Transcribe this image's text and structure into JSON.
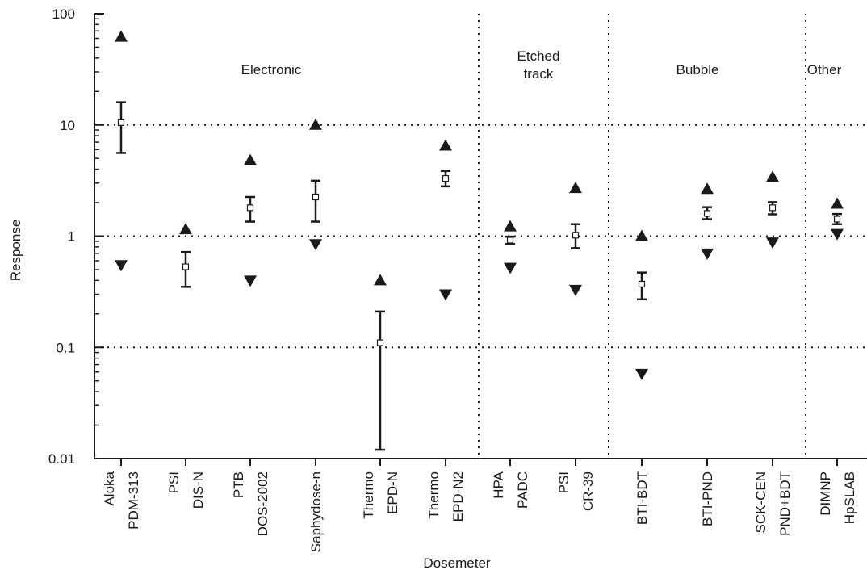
{
  "chart_data": {
    "type": "scatter",
    "xlabel": "Dosemeter",
    "ylabel": "Response",
    "yscale": "log",
    "ylim": [
      0.01,
      100
    ],
    "yticks": [
      {
        "value": 100,
        "label": "100"
      },
      {
        "value": 10,
        "label": "10"
      },
      {
        "value": 1,
        "label": "1"
      },
      {
        "value": 0.1,
        "label": "0.1"
      },
      {
        "value": 0.01,
        "label": "0.01"
      }
    ],
    "horizontal_gridlines": [
      10,
      1,
      0.1
    ],
    "colors": {
      "ink": "#1a1a1a",
      "mean_marker_fill": "#ffffff"
    },
    "groups": [
      {
        "lines": [
          "Electronic"
        ],
        "start": 0,
        "end": 5
      },
      {
        "lines": [
          "Etched",
          "track"
        ],
        "start": 6,
        "end": 7
      },
      {
        "lines": [
          "Bubble"
        ],
        "start": 8,
        "end": 10
      },
      {
        "lines": [
          "Other"
        ],
        "start": 11,
        "end": 11
      }
    ],
    "categories": [
      {
        "lines": [
          "Aloka",
          "PDM-313"
        ],
        "max": 62,
        "min": 0.55,
        "mean": 10.5,
        "err_low": 5.6,
        "err_high": 16
      },
      {
        "lines": [
          "PSI",
          "DIS-N"
        ],
        "max": 1.15,
        "min": null,
        "mean": 0.53,
        "err_low": 0.35,
        "err_high": 0.72
      },
      {
        "lines": [
          "PTB",
          "DOS-2002"
        ],
        "max": 4.8,
        "min": 0.4,
        "mean": 1.8,
        "err_low": 1.35,
        "err_high": 2.25
      },
      {
        "lines": [
          "Saphydose-n"
        ],
        "max": 10,
        "min": 0.85,
        "mean": 2.25,
        "err_low": 1.35,
        "err_high": 3.15
      },
      {
        "lines": [
          "Thermo",
          "EPD-N"
        ],
        "max": 0.4,
        "min": null,
        "mean": 0.11,
        "err_low": 0.012,
        "err_high": 0.21
      },
      {
        "lines": [
          "Thermo",
          "EPD-N2"
        ],
        "max": 6.5,
        "min": 0.3,
        "mean": 3.3,
        "err_low": 2.8,
        "err_high": 3.85
      },
      {
        "lines": [
          "HPA",
          "PADC"
        ],
        "max": 1.22,
        "min": 0.52,
        "mean": 0.92,
        "err_low": 0.85,
        "err_high": 0.99
      },
      {
        "lines": [
          "PSI",
          "CR-39"
        ],
        "max": 2.7,
        "min": 0.33,
        "mean": 1.02,
        "err_low": 0.78,
        "err_high": 1.28
      },
      {
        "lines": [
          "BTI-BDT"
        ],
        "max": 1.0,
        "min": 0.058,
        "mean": 0.37,
        "err_low": 0.27,
        "err_high": 0.47
      },
      {
        "lines": [
          "BTI-PND"
        ],
        "max": 2.65,
        "min": 0.7,
        "mean": 1.6,
        "err_low": 1.42,
        "err_high": 1.82
      },
      {
        "lines": [
          "SCK-CEN",
          "PND+BDT"
        ],
        "max": 3.4,
        "min": 0.88,
        "mean": 1.8,
        "err_low": 1.57,
        "err_high": 2.02
      },
      {
        "lines": [
          "DIMNP",
          "HpSLAB"
        ],
        "max": 1.95,
        "min": 1.05,
        "mean": 1.42,
        "err_low": 1.28,
        "err_high": 1.58
      }
    ]
  }
}
